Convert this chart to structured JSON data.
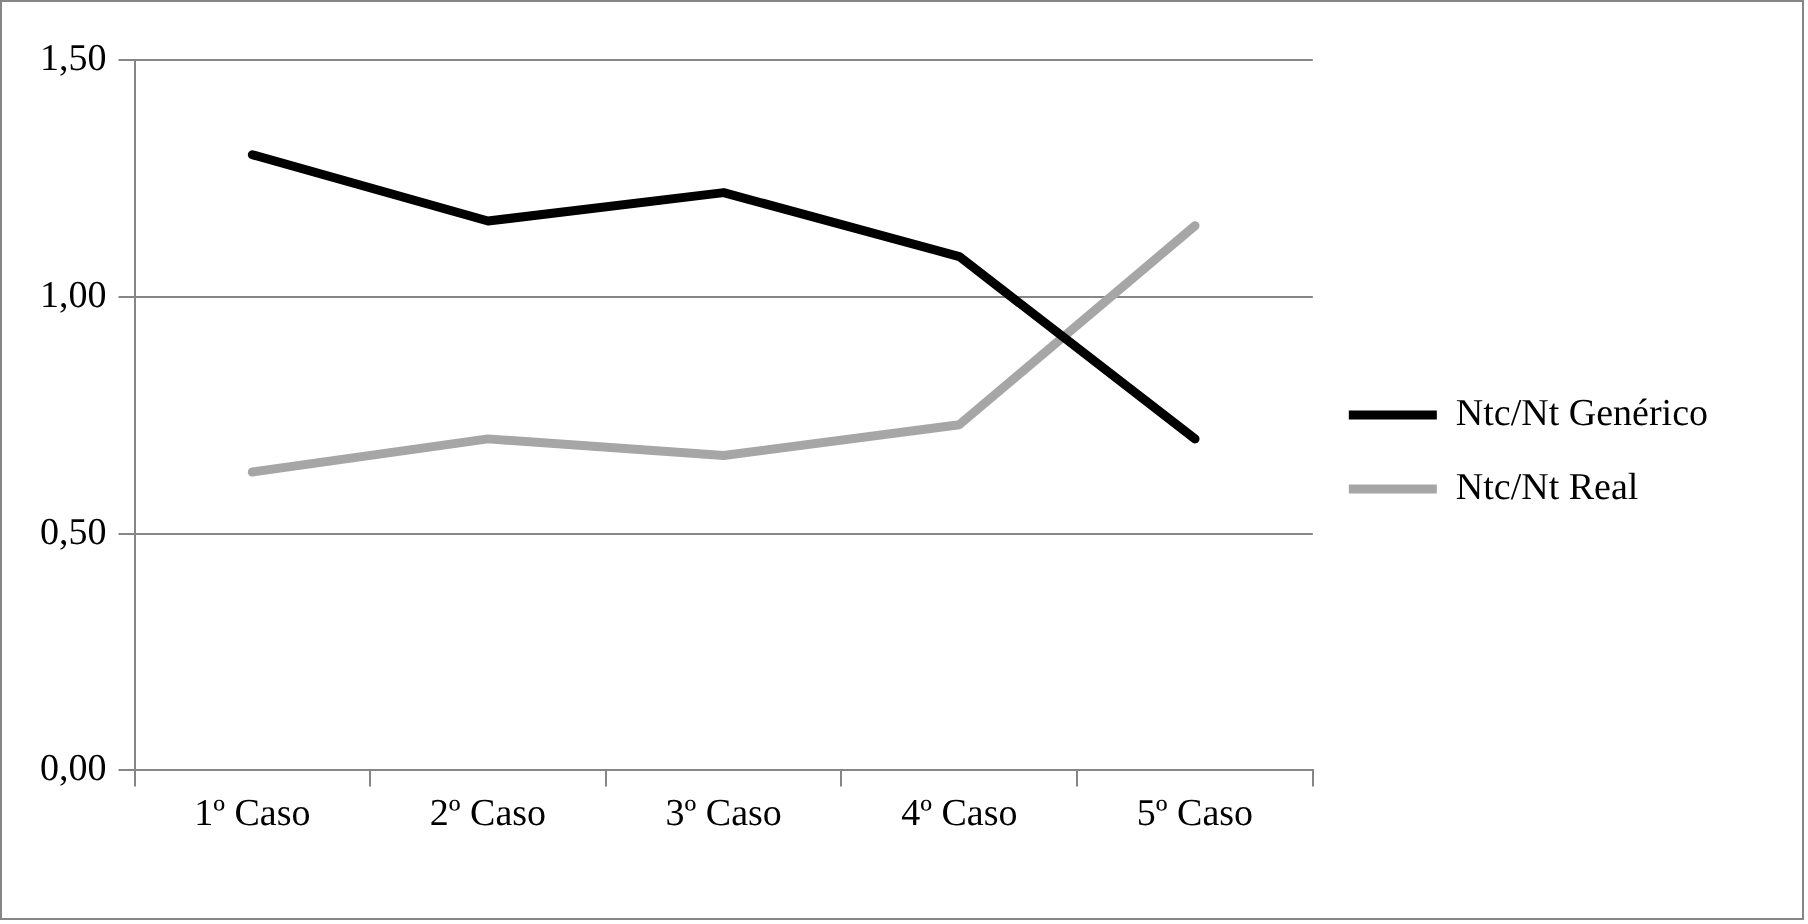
{
  "chart_data": {
    "type": "line",
    "categories": [
      "1º Caso",
      "2º Caso",
      "3º Caso",
      "4º Caso",
      "5º Caso"
    ],
    "series": [
      {
        "name": "Ntc/Nt Genérico",
        "color": "#000000",
        "values": [
          1.3,
          1.16,
          1.22,
          1.085,
          0.7
        ]
      },
      {
        "name": "Ntc/Nt Real",
        "color": "#a6a6a6",
        "values": [
          0.63,
          0.7,
          0.665,
          0.73,
          1.15
        ]
      }
    ],
    "ylim": [
      0,
      1.5
    ],
    "yticks": [
      {
        "value": 0,
        "label": "0,00"
      },
      {
        "value": 0.5,
        "label": "0,50"
      },
      {
        "value": 1,
        "label": "1,00"
      },
      {
        "value": 1.5,
        "label": "1,50"
      }
    ],
    "grid": "y",
    "legend": "right",
    "marker": "none",
    "line_style": "solid"
  }
}
